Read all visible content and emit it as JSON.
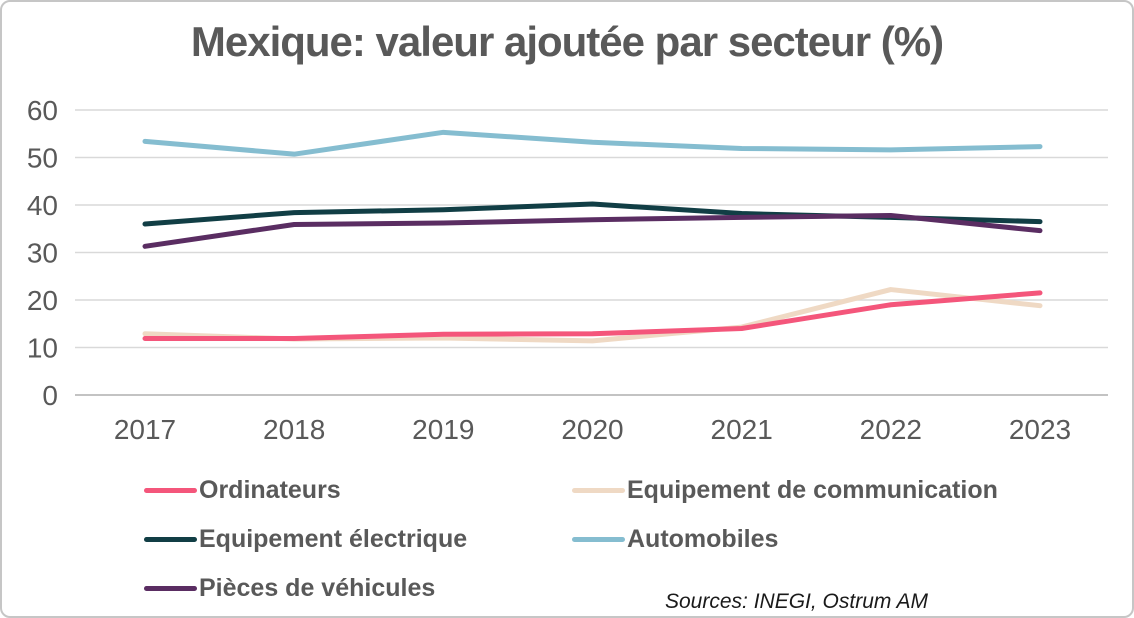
{
  "title": "Mexique: valeur ajoutée par secteur (%)",
  "source_note": "Sources: INEGI, Ostrum AM",
  "colors": {
    "text": "#595959",
    "grid": "#d9d9d9",
    "axis_zero_line": "#c3c3c3",
    "frame_border": "#c6c6c6"
  },
  "chart_data": {
    "type": "line",
    "title": "Mexique: valeur ajoutée par secteur (%)",
    "categories": [
      "2017",
      "2018",
      "2019",
      "2020",
      "2021",
      "2022",
      "2023"
    ],
    "series": [
      {
        "name": "Ordinateurs",
        "color": "#f4567b",
        "z": 5,
        "values": [
          11.9,
          11.9,
          12.8,
          12.9,
          14.0,
          19.0,
          21.5
        ]
      },
      {
        "name": "Equipement de communication",
        "color": "#efd9c4",
        "z": 1,
        "values": [
          12.9,
          11.8,
          12.0,
          11.4,
          14.3,
          22.2,
          18.8
        ]
      },
      {
        "name": "Equipement électrique",
        "color": "#113e45",
        "z": 3,
        "values": [
          36.0,
          38.4,
          39.0,
          40.2,
          38.2,
          37.4,
          36.5
        ]
      },
      {
        "name": "Automobiles",
        "color": "#85bdd0",
        "z": 2,
        "values": [
          53.4,
          50.7,
          55.3,
          53.2,
          51.9,
          51.6,
          52.3
        ]
      },
      {
        "name": "Pièces de véhicules",
        "color": "#5a2d62",
        "z": 4,
        "values": [
          31.3,
          35.9,
          36.2,
          36.9,
          37.4,
          37.8,
          34.6
        ]
      }
    ],
    "xlabel": "",
    "ylabel": "",
    "ylim": [
      0,
      60
    ],
    "yticks": [
      "0",
      "10",
      "20",
      "30",
      "40",
      "50",
      "60"
    ],
    "grid": true,
    "legend_position": "bottom"
  }
}
